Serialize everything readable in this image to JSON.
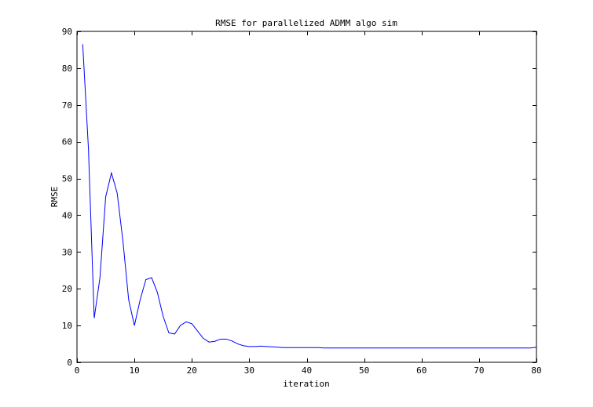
{
  "chart_data": {
    "type": "line",
    "title": "RMSE for parallelized ADMM algo sim",
    "xlabel": "iteration",
    "ylabel": "RMSE",
    "xlim": [
      0,
      80
    ],
    "ylim": [
      0,
      90
    ],
    "xticks": [
      0,
      10,
      20,
      30,
      40,
      50,
      60,
      70,
      80
    ],
    "yticks": [
      0,
      10,
      20,
      30,
      40,
      50,
      60,
      70,
      80,
      90
    ],
    "grid": false,
    "line_color": "#0000ff",
    "series": [
      {
        "x": [
          1,
          2,
          3,
          4,
          5,
          6,
          7,
          8,
          9,
          10,
          11,
          12,
          13,
          14,
          15,
          16,
          17,
          18,
          19,
          20,
          21,
          22,
          23,
          24,
          25,
          26,
          27,
          28,
          29,
          30,
          31,
          32,
          33,
          34,
          35,
          36,
          37,
          38,
          39,
          40,
          41,
          42,
          43,
          44,
          45,
          46,
          47,
          48,
          49,
          50,
          51,
          52,
          53,
          54,
          55,
          56,
          57,
          58,
          59,
          60,
          61,
          62,
          63,
          64,
          65,
          66,
          67,
          68,
          69,
          70,
          71,
          72,
          73,
          74,
          75,
          76,
          77,
          78,
          79,
          80
        ],
        "y": [
          86.5,
          58,
          12,
          23,
          45,
          51.5,
          46,
          33,
          17,
          10,
          17,
          22.5,
          23,
          19,
          12.5,
          8,
          7.7,
          10,
          11,
          10.5,
          8.5,
          6.5,
          5.5,
          5.7,
          6.3,
          6.3,
          5.8,
          5.0,
          4.5,
          4.3,
          4.3,
          4.4,
          4.3,
          4.2,
          4.1,
          4.0,
          4.0,
          4.0,
          4.0,
          4.0,
          4.0,
          4.0,
          3.9,
          3.9,
          3.9,
          3.9,
          3.9,
          3.9,
          3.9,
          3.9,
          3.9,
          3.9,
          3.9,
          3.9,
          3.9,
          3.9,
          3.9,
          3.9,
          3.9,
          3.9,
          3.9,
          3.9,
          3.9,
          3.9,
          3.9,
          3.9,
          3.9,
          3.9,
          3.9,
          3.9,
          3.9,
          3.9,
          3.9,
          3.9,
          3.9,
          3.9,
          3.9,
          3.9,
          3.9,
          4.1
        ]
      }
    ]
  }
}
